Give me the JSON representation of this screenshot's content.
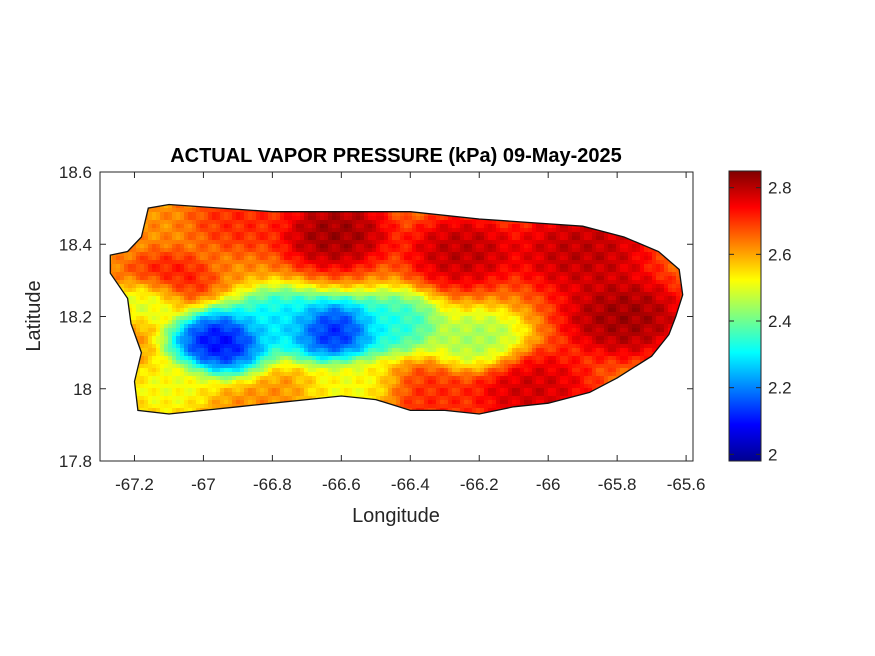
{
  "chart_data": {
    "type": "heatmap",
    "title": "ACTUAL VAPOR PRESSURE (kPa) 09-May-2025",
    "xlabel": "Longitude",
    "ylabel": "Latitude",
    "xlim": [
      -67.3,
      -65.58
    ],
    "ylim": [
      17.8,
      18.6
    ],
    "x_ticks": [
      -67.2,
      -67,
      -66.8,
      -66.6,
      -66.4,
      -66.2,
      -66,
      -65.8,
      -65.6
    ],
    "x_tick_labels": [
      "-67.2",
      "-67",
      "-66.8",
      "-66.6",
      "-66.4",
      "-66.2",
      "-66",
      "-65.8",
      "-65.6"
    ],
    "y_ticks": [
      17.8,
      18,
      18.2,
      18.4,
      18.6
    ],
    "y_tick_labels": [
      "17.8",
      "18",
      "18.2",
      "18.4",
      "18.6"
    ],
    "colorbar": {
      "colormap": "jet",
      "range": [
        1.98,
        2.85
      ],
      "ticks": [
        2,
        2.2,
        2.4,
        2.6,
        2.8
      ],
      "tick_labels": [
        "2",
        "2.2",
        "2.4",
        "2.6",
        "2.8"
      ]
    },
    "grid": false,
    "outline": [
      [
        -67.27,
        18.37
      ],
      [
        -67.22,
        18.38
      ],
      [
        -67.18,
        18.42
      ],
      [
        -67.16,
        18.5
      ],
      [
        -67.1,
        18.51
      ],
      [
        -66.95,
        18.5
      ],
      [
        -66.8,
        18.49
      ],
      [
        -66.6,
        18.49
      ],
      [
        -66.4,
        18.49
      ],
      [
        -66.2,
        18.47
      ],
      [
        -66.05,
        18.46
      ],
      [
        -65.9,
        18.45
      ],
      [
        -65.78,
        18.42
      ],
      [
        -65.68,
        18.38
      ],
      [
        -65.62,
        18.33
      ],
      [
        -65.61,
        18.26
      ],
      [
        -65.63,
        18.2
      ],
      [
        -65.65,
        18.15
      ],
      [
        -65.7,
        18.09
      ],
      [
        -65.8,
        18.03
      ],
      [
        -65.88,
        17.99
      ],
      [
        -66.0,
        17.96
      ],
      [
        -66.1,
        17.95
      ],
      [
        -66.2,
        17.93
      ],
      [
        -66.3,
        17.94
      ],
      [
        -66.4,
        17.94
      ],
      [
        -66.5,
        17.97
      ],
      [
        -66.6,
        17.98
      ],
      [
        -66.7,
        17.97
      ],
      [
        -66.8,
        17.96
      ],
      [
        -66.9,
        17.95
      ],
      [
        -67.0,
        17.94
      ],
      [
        -67.1,
        17.93
      ],
      [
        -67.19,
        17.94
      ],
      [
        -67.2,
        18.02
      ],
      [
        -67.18,
        18.1
      ],
      [
        -67.21,
        18.18
      ],
      [
        -67.22,
        18.25
      ],
      [
        -67.27,
        18.32
      ]
    ],
    "fields": [
      {
        "lon": -66.62,
        "lat": 18.43,
        "value": 2.85,
        "sigma": 0.08
      },
      {
        "lon": -66.25,
        "lat": 18.38,
        "value": 2.82,
        "sigma": 0.08
      },
      {
        "lon": -65.9,
        "lat": 18.38,
        "value": 2.82,
        "sigma": 0.1
      },
      {
        "lon": -65.78,
        "lat": 18.2,
        "value": 2.85,
        "sigma": 0.09
      },
      {
        "lon": -66.05,
        "lat": 18.0,
        "value": 2.8,
        "sigma": 0.09
      },
      {
        "lon": -66.35,
        "lat": 17.97,
        "value": 2.72,
        "sigma": 0.08
      },
      {
        "lon": -66.88,
        "lat": 18.47,
        "value": 2.72,
        "sigma": 0.07
      },
      {
        "lon": -67.1,
        "lat": 18.3,
        "value": 2.74,
        "sigma": 0.06
      },
      {
        "lon": -66.95,
        "lat": 18.13,
        "value": 2.02,
        "sigma": 0.07
      },
      {
        "lon": -66.62,
        "lat": 18.16,
        "value": 2.04,
        "sigma": 0.07
      },
      {
        "lon": -66.78,
        "lat": 18.19,
        "value": 2.26,
        "sigma": 0.07
      },
      {
        "lon": -66.45,
        "lat": 18.18,
        "value": 2.3,
        "sigma": 0.07
      },
      {
        "lon": -66.2,
        "lat": 18.13,
        "value": 2.42,
        "sigma": 0.07
      },
      {
        "lon": -67.15,
        "lat": 18.25,
        "value": 2.45,
        "sigma": 0.05
      },
      {
        "lon": -67.1,
        "lat": 18.0,
        "value": 2.5,
        "sigma": 0.06
      },
      {
        "lon": -66.55,
        "lat": 18.0,
        "value": 2.5,
        "sigma": 0.07
      }
    ],
    "base_value": 2.62
  }
}
